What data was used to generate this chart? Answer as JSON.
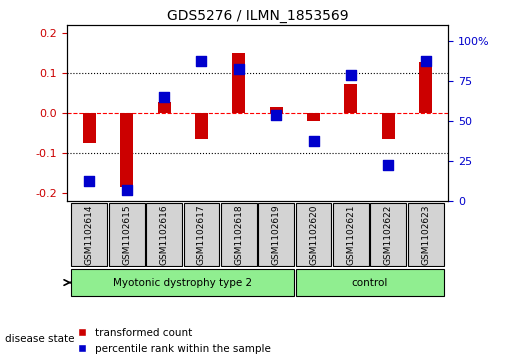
{
  "title": "GDS5276 / ILMN_1853569",
  "categories": [
    "GSM1102614",
    "GSM1102615",
    "GSM1102616",
    "GSM1102617",
    "GSM1102618",
    "GSM1102619",
    "GSM1102620",
    "GSM1102621",
    "GSM1102622",
    "GSM1102623"
  ],
  "red_values": [
    -0.075,
    -0.185,
    0.028,
    -0.065,
    0.152,
    0.015,
    -0.018,
    0.073,
    -0.065,
    0.128
  ],
  "blue_values": [
    0.13,
    0.07,
    0.65,
    0.88,
    0.83,
    0.54,
    0.38,
    0.79,
    0.23,
    0.88
  ],
  "groups": [
    {
      "label": "Myotonic dystrophy type 2",
      "start": 0,
      "end": 6,
      "color": "#90ee90"
    },
    {
      "label": "control",
      "start": 6,
      "end": 10,
      "color": "#90ee90"
    }
  ],
  "disease_state_label": "disease state",
  "ylim_left": [
    -0.22,
    0.22
  ],
  "ylim_right": [
    0,
    1.1
  ],
  "yticks_left": [
    -0.2,
    -0.1,
    0.0,
    0.1,
    0.2
  ],
  "yticks_right": [
    0,
    0.25,
    0.5,
    0.75,
    1.0
  ],
  "ytick_labels_right": [
    "0",
    "25",
    "50",
    "75",
    "100%"
  ],
  "hlines": [
    0.1,
    0.0,
    -0.1
  ],
  "red_color": "#cc0000",
  "blue_color": "#0000cc",
  "bar_width": 0.35,
  "blue_marker_size": 60,
  "legend_items": [
    {
      "label": "transformed count",
      "color": "#cc0000",
      "marker": "s"
    },
    {
      "label": "percentile rank within the sample",
      "color": "#0000cc",
      "marker": "s"
    }
  ],
  "bg_color": "#ffffff",
  "plot_bg_color": "#ffffff",
  "grid_color": "#aaaaaa",
  "label_color_left": "#cc0000",
  "label_color_right": "#0000cc"
}
